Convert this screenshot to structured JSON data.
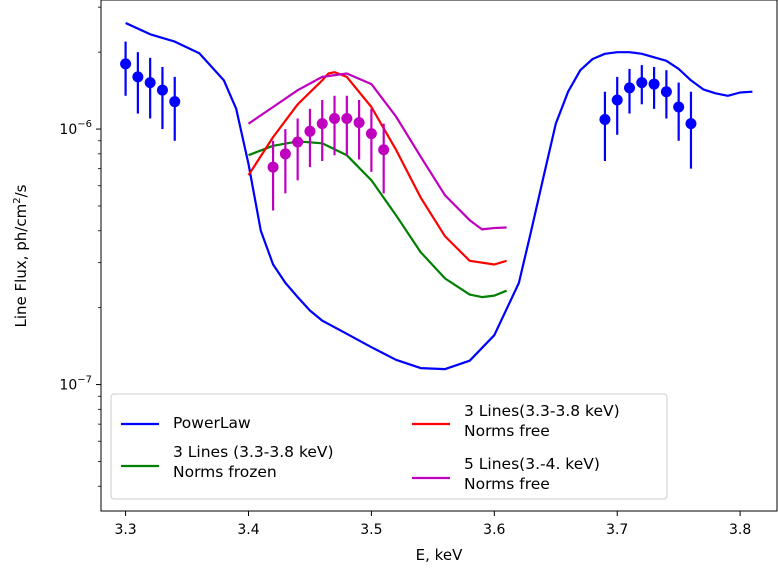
{
  "chart_data": {
    "type": "line",
    "xlabel": "E, keV",
    "ylabel_main": "Line Flux, ph/cm",
    "ylabel_sup": "2",
    "ylabel_tail": "/s",
    "xlim": [
      3.28,
      3.83
    ],
    "ylim": [
      3.2e-08,
      3.2e-06
    ],
    "yscale": "log",
    "grid": false,
    "legend_placement": "lower-left",
    "x_ticks": [
      3.3,
      3.4,
      3.5,
      3.6,
      3.7,
      3.8
    ],
    "x_tick_labels": [
      "3.3",
      "3.4",
      "3.5",
      "3.6",
      "3.7",
      "3.8"
    ],
    "y_ticks": [
      {
        "value": 1e-07,
        "base": "10",
        "exp": "−7"
      },
      {
        "value": 1e-06,
        "base": "10",
        "exp": "−6"
      }
    ],
    "series": [
      {
        "name": "PowerLaw",
        "color": "#0000ff",
        "x": [
          3.3,
          3.32,
          3.34,
          3.36,
          3.38,
          3.39,
          3.4,
          3.41,
          3.42,
          3.43,
          3.44,
          3.45,
          3.46,
          3.48,
          3.5,
          3.52,
          3.54,
          3.56,
          3.58,
          3.6,
          3.62,
          3.63,
          3.64,
          3.65,
          3.66,
          3.67,
          3.68,
          3.69,
          3.7,
          3.71,
          3.72,
          3.74,
          3.75,
          3.76,
          3.77,
          3.78,
          3.79,
          3.8,
          3.81
        ],
        "y": [
          2.6e-06,
          2.35e-06,
          2.2e-06,
          1.98e-06,
          1.55e-06,
          1.2e-06,
          7.3e-07,
          4e-07,
          2.95e-07,
          2.5e-07,
          2.2e-07,
          1.95e-07,
          1.78e-07,
          1.58e-07,
          1.4e-07,
          1.25e-07,
          1.16e-07,
          1.15e-07,
          1.24e-07,
          1.56e-07,
          2.5e-07,
          4e-07,
          6.5e-07,
          1.05e-06,
          1.4e-06,
          1.7e-06,
          1.88e-06,
          1.97e-06,
          2e-06,
          2e-06,
          1.97e-06,
          1.85e-06,
          1.72e-06,
          1.55e-06,
          1.43e-06,
          1.38e-06,
          1.35e-06,
          1.39e-06,
          1.4e-06
        ]
      },
      {
        "name": "3 Lines (3.3-3.8 keV)\nNorms frozen",
        "legend_lines": [
          "3 Lines (3.3-3.8 keV)",
          "Norms frozen"
        ],
        "color": "#008000",
        "x": [
          3.4,
          3.42,
          3.44,
          3.46,
          3.48,
          3.5,
          3.52,
          3.54,
          3.56,
          3.58,
          3.59,
          3.6,
          3.61
        ],
        "y": [
          7.9e-07,
          8.6e-07,
          8.95e-07,
          8.8e-07,
          7.9e-07,
          6.3e-07,
          4.6e-07,
          3.3e-07,
          2.6e-07,
          2.25e-07,
          2.2e-07,
          2.23e-07,
          2.33e-07
        ]
      },
      {
        "name": "3 Lines(3.3-3.8 keV)\nNorms free",
        "legend_lines": [
          "3 Lines(3.3-3.8 keV)",
          "Norms free"
        ],
        "color": "#ff0000",
        "x": [
          3.4,
          3.42,
          3.44,
          3.46,
          3.465,
          3.47,
          3.48,
          3.5,
          3.52,
          3.54,
          3.56,
          3.58,
          3.6,
          3.61
        ],
        "y": [
          6.6e-07,
          9.3e-07,
          1.25e-06,
          1.55e-06,
          1.65e-06,
          1.67e-06,
          1.6e-06,
          1.22e-06,
          8.3e-07,
          5.4e-07,
          3.8e-07,
          3.05e-07,
          2.95e-07,
          3.05e-07
        ]
      },
      {
        "name": "5 Lines(3.-4. keV)\nNorms free",
        "legend_lines": [
          "5 Lines(3.-4. keV)",
          "Norms free"
        ],
        "color": "#bf00bf",
        "x": [
          3.4,
          3.42,
          3.44,
          3.46,
          3.48,
          3.5,
          3.52,
          3.54,
          3.56,
          3.58,
          3.59,
          3.6,
          3.61
        ],
        "y": [
          1.05e-06,
          1.22e-06,
          1.42e-06,
          1.6e-06,
          1.65e-06,
          1.5e-06,
          1.12e-06,
          7.8e-07,
          5.5e-07,
          4.4e-07,
          4.05e-07,
          4.1e-07,
          4.12e-07
        ]
      }
    ],
    "data_points": [
      {
        "color": "#0000ff",
        "points": [
          {
            "x": 3.3,
            "y": 1.8e-06,
            "lo": 1.35e-06,
            "hi": 2.2e-06
          },
          {
            "x": 3.31,
            "y": 1.6e-06,
            "lo": 1.15e-06,
            "hi": 2e-06
          },
          {
            "x": 3.32,
            "y": 1.52e-06,
            "lo": 1.1e-06,
            "hi": 1.9e-06
          },
          {
            "x": 3.33,
            "y": 1.42e-06,
            "lo": 1e-06,
            "hi": 1.75e-06
          },
          {
            "x": 3.34,
            "y": 1.28e-06,
            "lo": 9e-07,
            "hi": 1.6e-06
          }
        ]
      },
      {
        "color": "#bf00bf",
        "points": [
          {
            "x": 3.42,
            "y": 7.1e-07,
            "lo": 4.8e-07,
            "hi": 9e-07
          },
          {
            "x": 3.43,
            "y": 8e-07,
            "lo": 5.6e-07,
            "hi": 1e-06
          },
          {
            "x": 3.44,
            "y": 8.9e-07,
            "lo": 6.3e-07,
            "hi": 1.1e-06
          },
          {
            "x": 3.45,
            "y": 9.8e-07,
            "lo": 7.1e-07,
            "hi": 1.2e-06
          },
          {
            "x": 3.46,
            "y": 1.05e-06,
            "lo": 7.5e-07,
            "hi": 1.3e-06
          },
          {
            "x": 3.47,
            "y": 1.1e-06,
            "lo": 7.9e-07,
            "hi": 1.35e-06
          },
          {
            "x": 3.48,
            "y": 1.1e-06,
            "lo": 7.9e-07,
            "hi": 1.35e-06
          },
          {
            "x": 3.49,
            "y": 1.06e-06,
            "lo": 7.6e-07,
            "hi": 1.3e-06
          },
          {
            "x": 3.5,
            "y": 9.6e-07,
            "lo": 6.8e-07,
            "hi": 1.2e-06
          },
          {
            "x": 3.51,
            "y": 8.3e-07,
            "lo": 5.6e-07,
            "hi": 1.05e-06
          }
        ]
      },
      {
        "color": "#0000ff",
        "points": [
          {
            "x": 3.69,
            "y": 1.09e-06,
            "lo": 7.5e-07,
            "hi": 1.4e-06
          },
          {
            "x": 3.7,
            "y": 1.3e-06,
            "lo": 9.5e-07,
            "hi": 1.6e-06
          },
          {
            "x": 3.71,
            "y": 1.45e-06,
            "lo": 1.15e-06,
            "hi": 1.72e-06
          },
          {
            "x": 3.72,
            "y": 1.52e-06,
            "lo": 1.25e-06,
            "hi": 1.78e-06
          },
          {
            "x": 3.73,
            "y": 1.5e-06,
            "lo": 1.2e-06,
            "hi": 1.75e-06
          },
          {
            "x": 3.74,
            "y": 1.4e-06,
            "lo": 1.1e-06,
            "hi": 1.7e-06
          },
          {
            "x": 3.75,
            "y": 1.22e-06,
            "lo": 9e-07,
            "hi": 1.52e-06
          },
          {
            "x": 3.76,
            "y": 1.05e-06,
            "lo": 7e-07,
            "hi": 1.4e-06
          }
        ]
      }
    ]
  }
}
